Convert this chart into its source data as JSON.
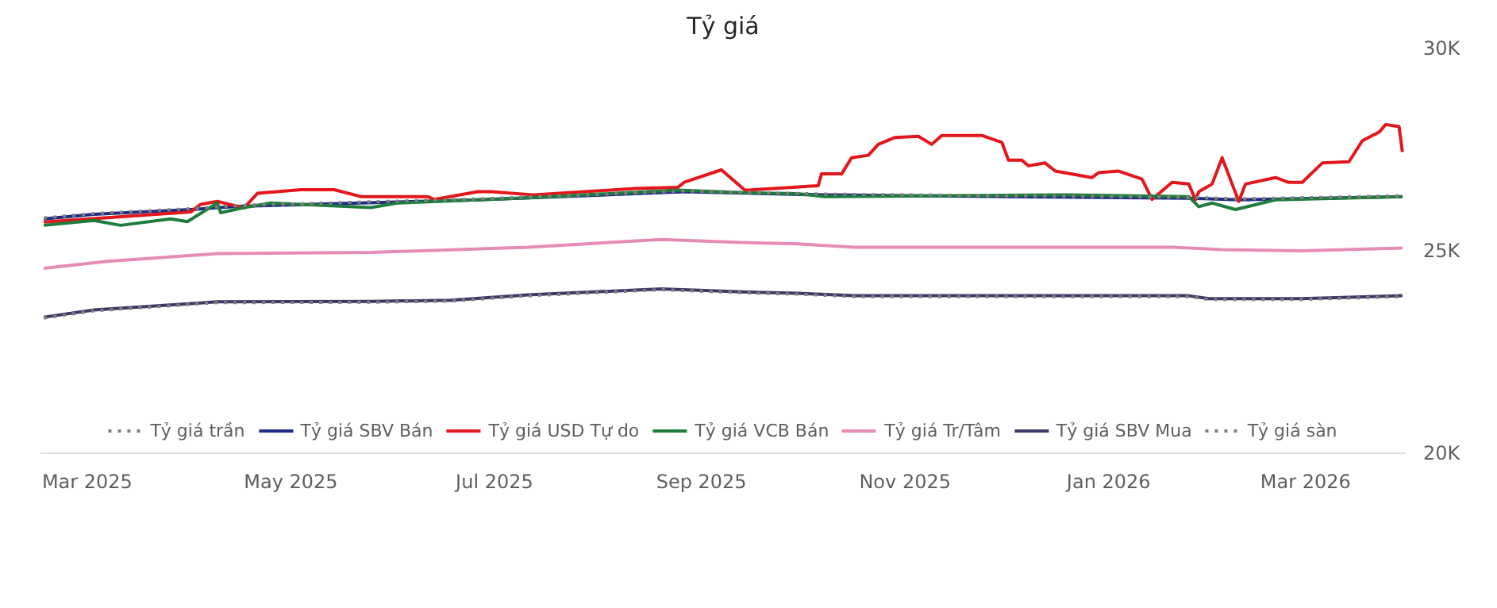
{
  "chart_data": {
    "type": "line",
    "title": "Tỷ giá",
    "xlim": [
      "2025-02-15",
      "2026-03-31"
    ],
    "xticks": [
      {
        "value": "2025-03-01",
        "label": "Mar 2025"
      },
      {
        "value": "2025-05-01",
        "label": "May 2025"
      },
      {
        "value": "2025-07-01",
        "label": "Jul 2025"
      },
      {
        "value": "2025-09-01",
        "label": "Sep 2025"
      },
      {
        "value": "2025-11-01",
        "label": "Nov 2025"
      },
      {
        "value": "2026-01-01",
        "label": "Jan 2026"
      },
      {
        "value": "2026-03-01",
        "label": "Mar 2026"
      }
    ],
    "ylim": [
      20000,
      30000
    ],
    "yticks": [
      {
        "value": 20000,
        "label": "20K"
      },
      {
        "value": 25000,
        "label": "25K"
      },
      {
        "value": 30000,
        "label": "30K"
      }
    ],
    "grid": false,
    "legend": "bottom",
    "series": [
      {
        "name": "Tỷ giá trần",
        "color": "#7f7f7f",
        "line_style": "dotted",
        "x": [
          "2025-02-16",
          "2025-03-03",
          "2025-04-01",
          "2025-04-15",
          "2025-06-26",
          "2025-08-27",
          "2025-10-08",
          "2026-01-25",
          "2026-02-09",
          "2026-03-30"
        ],
        "values": [
          25810,
          25920,
          26040,
          26120,
          26280,
          26480,
          26400,
          26320,
          26280,
          26360
        ]
      },
      {
        "name": "Tỷ giá SBV Bán",
        "color": "#1f2d86",
        "x": [
          "2025-02-16",
          "2025-03-03",
          "2025-04-01",
          "2025-04-15",
          "2025-06-26",
          "2025-08-27",
          "2025-10-08",
          "2026-01-25",
          "2026-02-09",
          "2026-03-30"
        ],
        "values": [
          25790,
          25900,
          26020,
          26100,
          26260,
          26460,
          26380,
          26300,
          26260,
          26340
        ]
      },
      {
        "name": "Tỷ giá USD Tự do",
        "color": "#e3161b",
        "x": [
          "2025-02-16",
          "2025-04-01",
          "2025-04-04",
          "2025-04-09",
          "2025-04-17",
          "2025-04-21",
          "2025-05-04",
          "2025-05-14",
          "2025-05-22",
          "2025-06-11",
          "2025-06-13",
          "2025-06-26",
          "2025-06-30",
          "2025-07-13",
          "2025-08-12",
          "2025-08-25",
          "2025-08-27",
          "2025-09-07",
          "2025-09-14",
          "2025-09-15",
          "2025-10-06",
          "2025-10-07",
          "2025-10-13",
          "2025-10-16",
          "2025-10-21",
          "2025-10-24",
          "2025-10-29",
          "2025-11-05",
          "2025-11-09",
          "2025-11-12",
          "2025-11-24",
          "2025-11-30",
          "2025-12-02",
          "2025-12-06",
          "2025-12-08",
          "2025-12-13",
          "2025-12-16",
          "2025-12-27",
          "2025-12-29",
          "2026-01-04",
          "2026-01-11",
          "2026-01-14",
          "2026-01-20",
          "2026-01-25",
          "2026-01-27",
          "2026-01-28",
          "2026-02-01",
          "2026-02-04",
          "2026-02-07",
          "2026-02-09",
          "2026-02-11",
          "2026-02-20",
          "2026-02-24",
          "2026-02-28",
          "2026-03-06",
          "2026-03-14",
          "2026-03-18",
          "2026-03-23",
          "2026-03-25",
          "2026-03-29",
          "2026-03-30"
        ],
        "values": [
          25710,
          25960,
          26150,
          26220,
          26060,
          26420,
          26510,
          26510,
          26340,
          26340,
          26270,
          26460,
          26460,
          26380,
          26540,
          26570,
          26700,
          27000,
          26500,
          26500,
          26610,
          26900,
          26900,
          27300,
          27360,
          27630,
          27800,
          27830,
          27630,
          27850,
          27850,
          27680,
          27240,
          27240,
          27100,
          27170,
          26970,
          26810,
          26930,
          26970,
          26770,
          26270,
          26690,
          26650,
          26260,
          26460,
          26650,
          27300,
          26650,
          26220,
          26650,
          26810,
          26690,
          26690,
          27170,
          27200,
          27720,
          27930,
          28120,
          28070,
          27440
        ]
      },
      {
        "name": "Tỷ giá VCB Bán",
        "color": "#1e7d3c",
        "x": [
          "2025-02-16",
          "2025-03-03",
          "2025-03-11",
          "2025-03-26",
          "2025-03-31",
          "2025-04-09",
          "2025-04-10",
          "2025-04-17",
          "2025-04-25",
          "2025-05-25",
          "2025-06-02",
          "2025-07-11",
          "2025-08-25",
          "2025-09-15",
          "2025-09-30",
          "2025-10-08",
          "2025-12-19",
          "2026-01-25",
          "2026-01-28",
          "2026-02-01",
          "2026-02-08",
          "2026-02-20",
          "2026-03-30"
        ],
        "values": [
          25630,
          25750,
          25630,
          25790,
          25720,
          26180,
          25940,
          26070,
          26180,
          26070,
          26180,
          26310,
          26500,
          26430,
          26410,
          26340,
          26380,
          26340,
          26090,
          26180,
          26020,
          26260,
          26340
        ]
      },
      {
        "name": "Tỷ giá Tr/Tâm",
        "color": "#e58bb6",
        "x": [
          "2025-02-16",
          "2025-03-07",
          "2025-04-09",
          "2025-05-25",
          "2025-07-11",
          "2025-08-20",
          "2025-09-15",
          "2025-09-30",
          "2025-10-17",
          "2026-01-20",
          "2026-02-04",
          "2026-02-28",
          "2026-03-30"
        ],
        "values": [
          24570,
          24740,
          24930,
          24960,
          25090,
          25280,
          25200,
          25170,
          25090,
          25090,
          25030,
          25000,
          25070
        ]
      },
      {
        "name": "Tỷ giá SBV Mua",
        "color": "#3c3a66",
        "x": [
          "2025-02-16",
          "2025-03-03",
          "2025-04-09",
          "2025-05-25",
          "2025-06-18",
          "2025-07-11",
          "2025-08-20",
          "2025-09-15",
          "2025-09-30",
          "2025-10-17",
          "2026-01-25",
          "2026-01-31",
          "2026-02-28",
          "2026-03-30"
        ],
        "values": [
          23360,
          23540,
          23740,
          23750,
          23780,
          23910,
          24060,
          23980,
          23950,
          23890,
          23890,
          23820,
          23820,
          23890
        ]
      },
      {
        "name": "Tỷ giá sàn",
        "color": "#7f7f7f",
        "line_style": "dotted",
        "x": [
          "2025-02-16",
          "2025-03-03",
          "2025-04-09",
          "2025-05-25",
          "2025-06-18",
          "2025-07-11",
          "2025-08-20",
          "2025-09-15",
          "2025-09-30",
          "2025-10-17",
          "2026-01-25",
          "2026-01-31",
          "2026-02-28",
          "2026-03-30"
        ],
        "values": [
          23340,
          23520,
          23720,
          23730,
          23760,
          23890,
          24040,
          23960,
          23930,
          23870,
          23870,
          23800,
          23800,
          23870
        ]
      }
    ]
  }
}
